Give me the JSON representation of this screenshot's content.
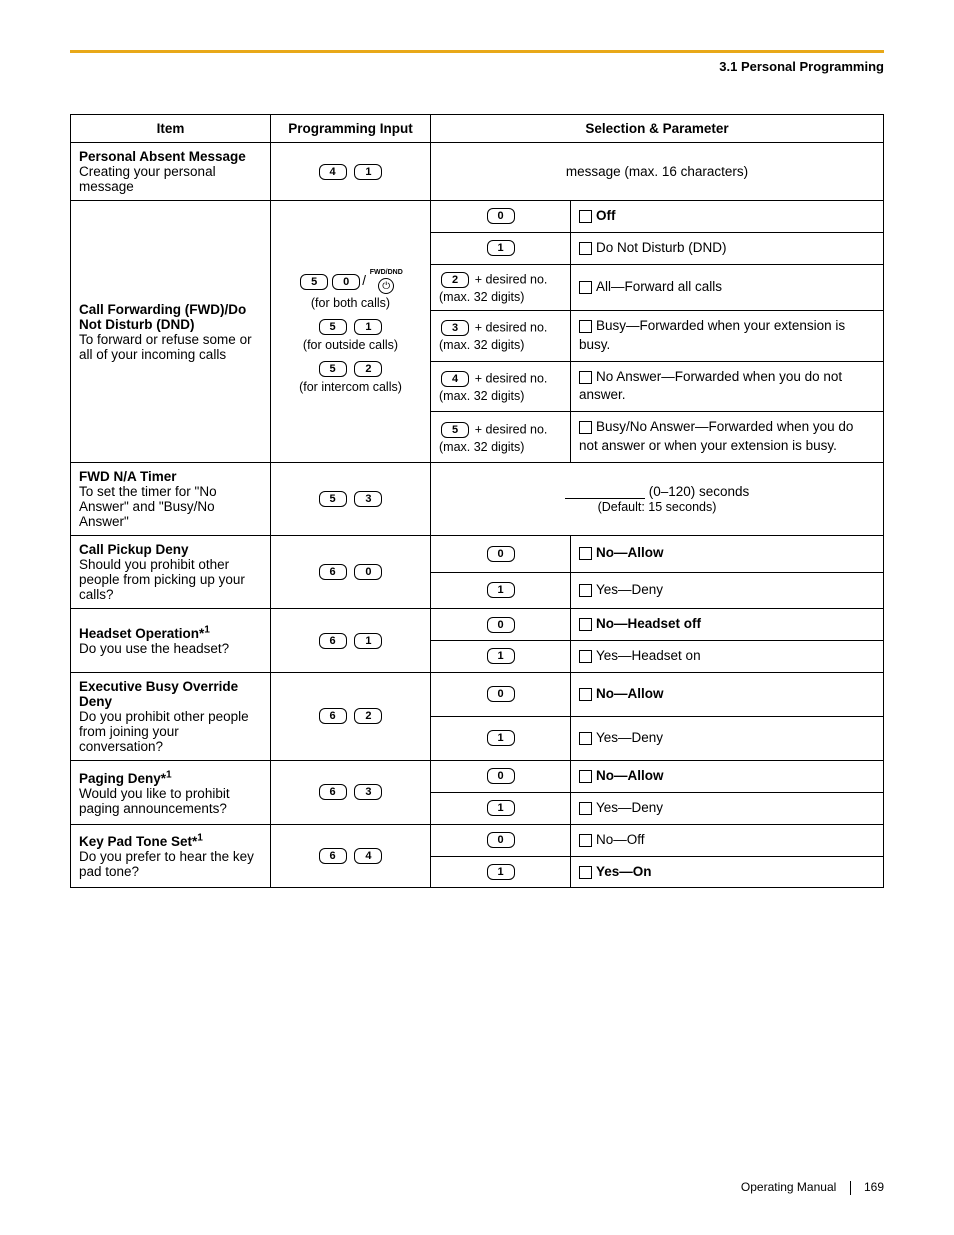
{
  "header": {
    "section": "3.1 Personal Programming"
  },
  "columns": {
    "item": "Item",
    "input": "Programming Input",
    "selection": "Selection & Parameter"
  },
  "rows": {
    "absent": {
      "title": "Personal Absent Message",
      "desc": "Creating your personal message",
      "keys": [
        "4",
        "1"
      ],
      "selection": "message (max. 16 characters)"
    },
    "fwd": {
      "title": "Call Forwarding (FWD)/Do Not Disturb (DND)",
      "desc": "To forward or refuse some or all of your incoming calls",
      "input_both_keys": [
        "5",
        "0"
      ],
      "input_both_label": "(for both calls)",
      "input_out_keys": [
        "5",
        "1"
      ],
      "input_out_label": "(for outside calls)",
      "input_int_keys": [
        "5",
        "2"
      ],
      "input_int_label": "(for intercom calls)",
      "fwd_icon_label": "FWD/DND",
      "opt0": {
        "key": "0",
        "label": "Off",
        "bold": true
      },
      "opt1": {
        "key": "1",
        "label": "Do Not Disturb (DND)"
      },
      "opt2": {
        "key": "2",
        "suffix": "+ desired no. (max. 32 digits)",
        "label": "All—Forward all calls"
      },
      "opt3": {
        "key": "3",
        "suffix": "+ desired no. (max. 32 digits)",
        "label": "Busy—Forwarded when your extension is busy."
      },
      "opt4": {
        "key": "4",
        "suffix": "+ desired no. (max. 32 digits)",
        "label": "No Answer—Forwarded when you do not answer."
      },
      "opt5": {
        "key": "5",
        "suffix": "+ desired no. (max. 32 digits)",
        "label": "Busy/No Answer—Forwarded when you do not answer or when your extension is busy."
      }
    },
    "fwd_timer": {
      "title": "FWD N/A Timer",
      "desc": "To set the timer for \"No Answer\" and \"Busy/No Answer\"",
      "keys": [
        "5",
        "3"
      ],
      "sel_line1": "(0–120) seconds",
      "sel_line2": "(Default: 15 seconds)"
    },
    "pickup": {
      "title": "Call Pickup Deny",
      "desc": "Should you prohibit other people from picking up your calls?",
      "keys": [
        "6",
        "0"
      ],
      "opt0": {
        "key": "0",
        "label": "No—Allow",
        "bold": true
      },
      "opt1": {
        "key": "1",
        "label": "Yes—Deny"
      }
    },
    "headset": {
      "title": "Headset Operation*",
      "sup": "1",
      "desc": "Do you use the headset?",
      "keys": [
        "6",
        "1"
      ],
      "opt0": {
        "key": "0",
        "label": "No—Headset off",
        "bold": true
      },
      "opt1": {
        "key": "1",
        "label": "Yes—Headset on"
      }
    },
    "exec": {
      "title": "Executive Busy Override Deny",
      "desc": "Do you prohibit other people from joining your conversation?",
      "keys": [
        "6",
        "2"
      ],
      "opt0": {
        "key": "0",
        "label": "No—Allow",
        "bold": true
      },
      "opt1": {
        "key": "1",
        "label": "Yes—Deny"
      }
    },
    "paging": {
      "title": "Paging Deny*",
      "sup": "1",
      "desc": "Would you like to prohibit paging announcements?",
      "keys": [
        "6",
        "3"
      ],
      "opt0": {
        "key": "0",
        "label": "No—Allow",
        "bold": true
      },
      "opt1": {
        "key": "1",
        "label": "Yes—Deny"
      }
    },
    "keypad": {
      "title": "Key Pad Tone Set*",
      "sup": "1",
      "desc": "Do you prefer to hear the key pad tone?",
      "keys": [
        "6",
        "4"
      ],
      "opt0": {
        "key": "0",
        "label": "No—Off"
      },
      "opt1": {
        "key": "1",
        "label": "Yes—On",
        "bold": true
      }
    }
  },
  "footer": {
    "manual": "Operating Manual",
    "page": "169"
  }
}
